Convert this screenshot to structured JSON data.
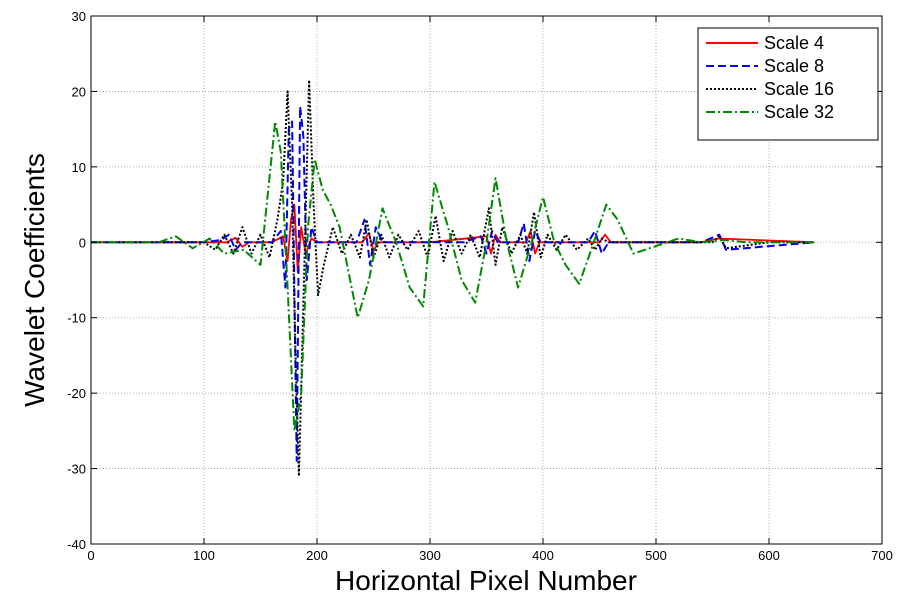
{
  "chart_data": {
    "type": "line",
    "title": "",
    "xlabel": "Horizontal Pixel Number",
    "ylabel": "Wavelet Coefficients",
    "xlim": [
      0,
      700
    ],
    "ylim": [
      -40,
      30
    ],
    "xticks": [
      0,
      100,
      200,
      300,
      400,
      500,
      600,
      700
    ],
    "yticks": [
      -40,
      -30,
      -20,
      -10,
      0,
      10,
      20,
      30
    ],
    "grid": true,
    "legend_position": "top-right",
    "series": [
      {
        "name": "Scale 4",
        "color": "#ff0000",
        "dash": "solid",
        "x": [
          0,
          60,
          120,
          128,
          134,
          140,
          160,
          170,
          174,
          177,
          180,
          183,
          186,
          190,
          195,
          200,
          240,
          246,
          250,
          254,
          300,
          350,
          354,
          358,
          362,
          385,
          389,
          393,
          397,
          450,
          455,
          460,
          540,
          555,
          640
        ],
        "y": [
          0,
          0,
          0,
          0.6,
          -0.6,
          0,
          0,
          0.8,
          -2.5,
          3,
          5,
          -4,
          2,
          -1.5,
          0.5,
          0,
          0,
          1.2,
          -1.2,
          0,
          0,
          0.8,
          -1.5,
          1.0,
          0,
          0,
          1.5,
          -1.5,
          0,
          0,
          1,
          0,
          0,
          0.5,
          0
        ]
      },
      {
        "name": "Scale 8",
        "color": "#0000ee",
        "dash": "dashed",
        "x": [
          0,
          100,
          115,
          122,
          128,
          134,
          160,
          168,
          172,
          175,
          178,
          182,
          185,
          188,
          191,
          195,
          200,
          235,
          242,
          247,
          252,
          258,
          330,
          345,
          350,
          355,
          360,
          378,
          383,
          388,
          393,
          398,
          440,
          446,
          452,
          458,
          540,
          556,
          562,
          640
        ],
        "y": [
          0,
          0,
          0.3,
          1,
          -1,
          0,
          0,
          1.5,
          -6,
          15,
          16,
          -29,
          18,
          14,
          -5,
          2,
          0,
          0,
          3,
          -3,
          2,
          0,
          0,
          0.8,
          -1.5,
          1.5,
          0,
          0,
          2.5,
          -2.5,
          1.5,
          0,
          0,
          1.5,
          -1.5,
          0,
          0,
          1,
          -1,
          0
        ]
      },
      {
        "name": "Scale 16",
        "color": "#000000",
        "dash": "dotted",
        "x": [
          0,
          60,
          100,
          110,
          118,
          126,
          134,
          142,
          150,
          158,
          165,
          170,
          174,
          178,
          181,
          184,
          188,
          193,
          197,
          201,
          206,
          214,
          222,
          230,
          238,
          244,
          250,
          257,
          264,
          272,
          280,
          290,
          298,
          305,
          312,
          320,
          328,
          336,
          344,
          352,
          358,
          364,
          372,
          380,
          386,
          392,
          398,
          404,
          412,
          420,
          430,
          440,
          446,
          452,
          458,
          470,
          500,
          550,
          556,
          562,
          600,
          640
        ],
        "y": [
          0,
          0,
          0,
          -1,
          1,
          -1.5,
          2,
          -1.5,
          1,
          -2,
          3,
          8,
          20,
          5,
          -15,
          -31,
          -8,
          21.5,
          5,
          -7,
          -3,
          2,
          -1.5,
          1,
          -2,
          3,
          -2,
          1,
          -2,
          1,
          -1,
          1.5,
          -2,
          3.5,
          -2.5,
          1.5,
          -1.5,
          1,
          -2,
          4.5,
          -3,
          2,
          -1.5,
          1,
          -1.5,
          4,
          -2,
          1,
          -1,
          1,
          -1,
          0.5,
          -1,
          0.5,
          0,
          0,
          0,
          0,
          0.8,
          -0.8,
          0,
          0
        ]
      },
      {
        "name": "Scale 32",
        "color": "#008800",
        "dash": "dashdot",
        "x": [
          0,
          60,
          75,
          90,
          105,
          118,
          135,
          150,
          163,
          168,
          174,
          180,
          186,
          192,
          198,
          205,
          212,
          220,
          228,
          236,
          246,
          258,
          270,
          282,
          294,
          304,
          316,
          328,
          340,
          350,
          358,
          368,
          378,
          390,
          400,
          410,
          420,
          432,
          445,
          456,
          466,
          480,
          500,
          520,
          540,
          560,
          580,
          600,
          640
        ],
        "y": [
          0,
          0,
          0.8,
          -0.8,
          0.5,
          -1.5,
          -1,
          -3,
          16,
          12,
          -6,
          -25,
          -20,
          2,
          11,
          7,
          5,
          2,
          -4,
          -10,
          -5,
          4.5,
          0,
          -6,
          -8.5,
          8,
          2,
          -5,
          -8,
          0,
          8.5,
          0,
          -6,
          0,
          6,
          0,
          -3,
          -5.5,
          0,
          5,
          3,
          -1.5,
          -0.5,
          0.5,
          0,
          0.3,
          0,
          0,
          0
        ]
      }
    ]
  }
}
